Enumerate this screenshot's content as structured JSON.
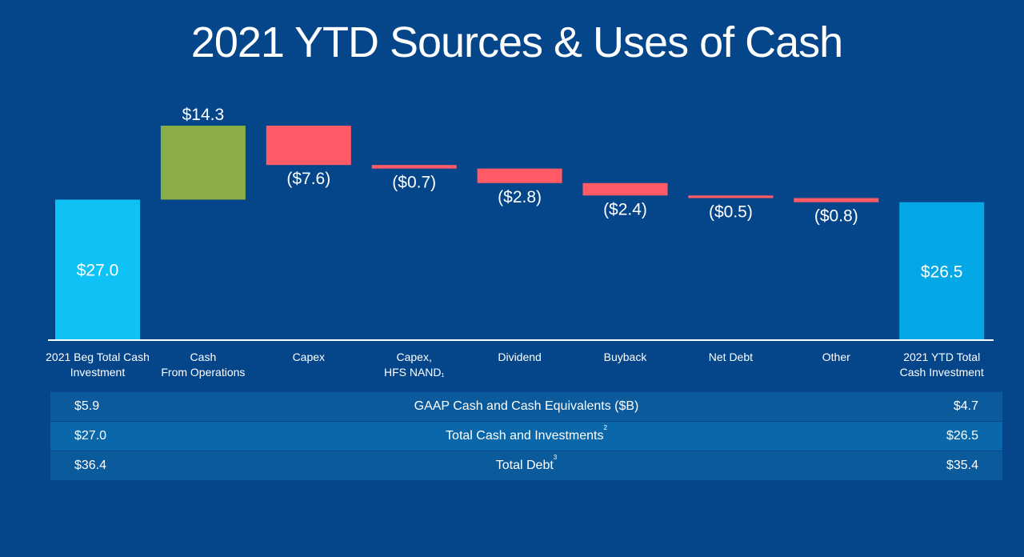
{
  "title": "2021 YTD Sources & Uses of Cash",
  "chart_data": {
    "type": "bar",
    "subtype": "waterfall",
    "title": "2021 YTD Sources & Uses of Cash",
    "units": "$B",
    "categories": [
      {
        "line1": "2021 Beg Total Cash",
        "line2": "Investment",
        "footnote": ""
      },
      {
        "line1": "Cash",
        "line2": "From Operations",
        "footnote": ""
      },
      {
        "line1": "Capex",
        "line2": "",
        "footnote": ""
      },
      {
        "line1": "Capex,",
        "line2": "HFS NAND",
        "footnote": "1"
      },
      {
        "line1": "Dividend",
        "line2": "",
        "footnote": ""
      },
      {
        "line1": "Buyback",
        "line2": "",
        "footnote": ""
      },
      {
        "line1": "Net Debt",
        "line2": "",
        "footnote": ""
      },
      {
        "line1": "Other",
        "line2": "",
        "footnote": ""
      },
      {
        "line1": "2021 YTD Total",
        "line2": "Cash Investment",
        "footnote": ""
      }
    ],
    "values": [
      27.0,
      14.3,
      -7.6,
      -0.7,
      -2.8,
      -2.4,
      -0.5,
      -0.8,
      26.5
    ],
    "kinds": [
      "total",
      "delta",
      "delta",
      "delta",
      "delta",
      "delta",
      "delta",
      "delta",
      "total"
    ],
    "value_labels": [
      "$27.0",
      "$14.3",
      "($7.6)",
      "($0.7)",
      "($2.8)",
      "($2.4)",
      "($0.5)",
      "($0.8)",
      "$26.5"
    ],
    "colors": {
      "start_total": "#0ec2f5",
      "end_total": "#05a8e6",
      "increase": "#8aad47",
      "decrease": "#ff5a66"
    },
    "ylim": [
      0,
      41.3
    ]
  },
  "table": {
    "rows": [
      {
        "left": "$5.9",
        "label": "GAAP Cash and Cash Equivalents ($B)",
        "footnote": "",
        "right": "$4.7"
      },
      {
        "left": "$27.0",
        "label": "Total Cash and Investments",
        "footnote": "2",
        "right": "$26.5"
      },
      {
        "left": "$36.4",
        "label": "Total Debt",
        "footnote": "3",
        "right": "$35.4"
      }
    ],
    "row_colors": [
      "#0a5a9c",
      "#0a68aa",
      "#0a5a9c"
    ]
  }
}
